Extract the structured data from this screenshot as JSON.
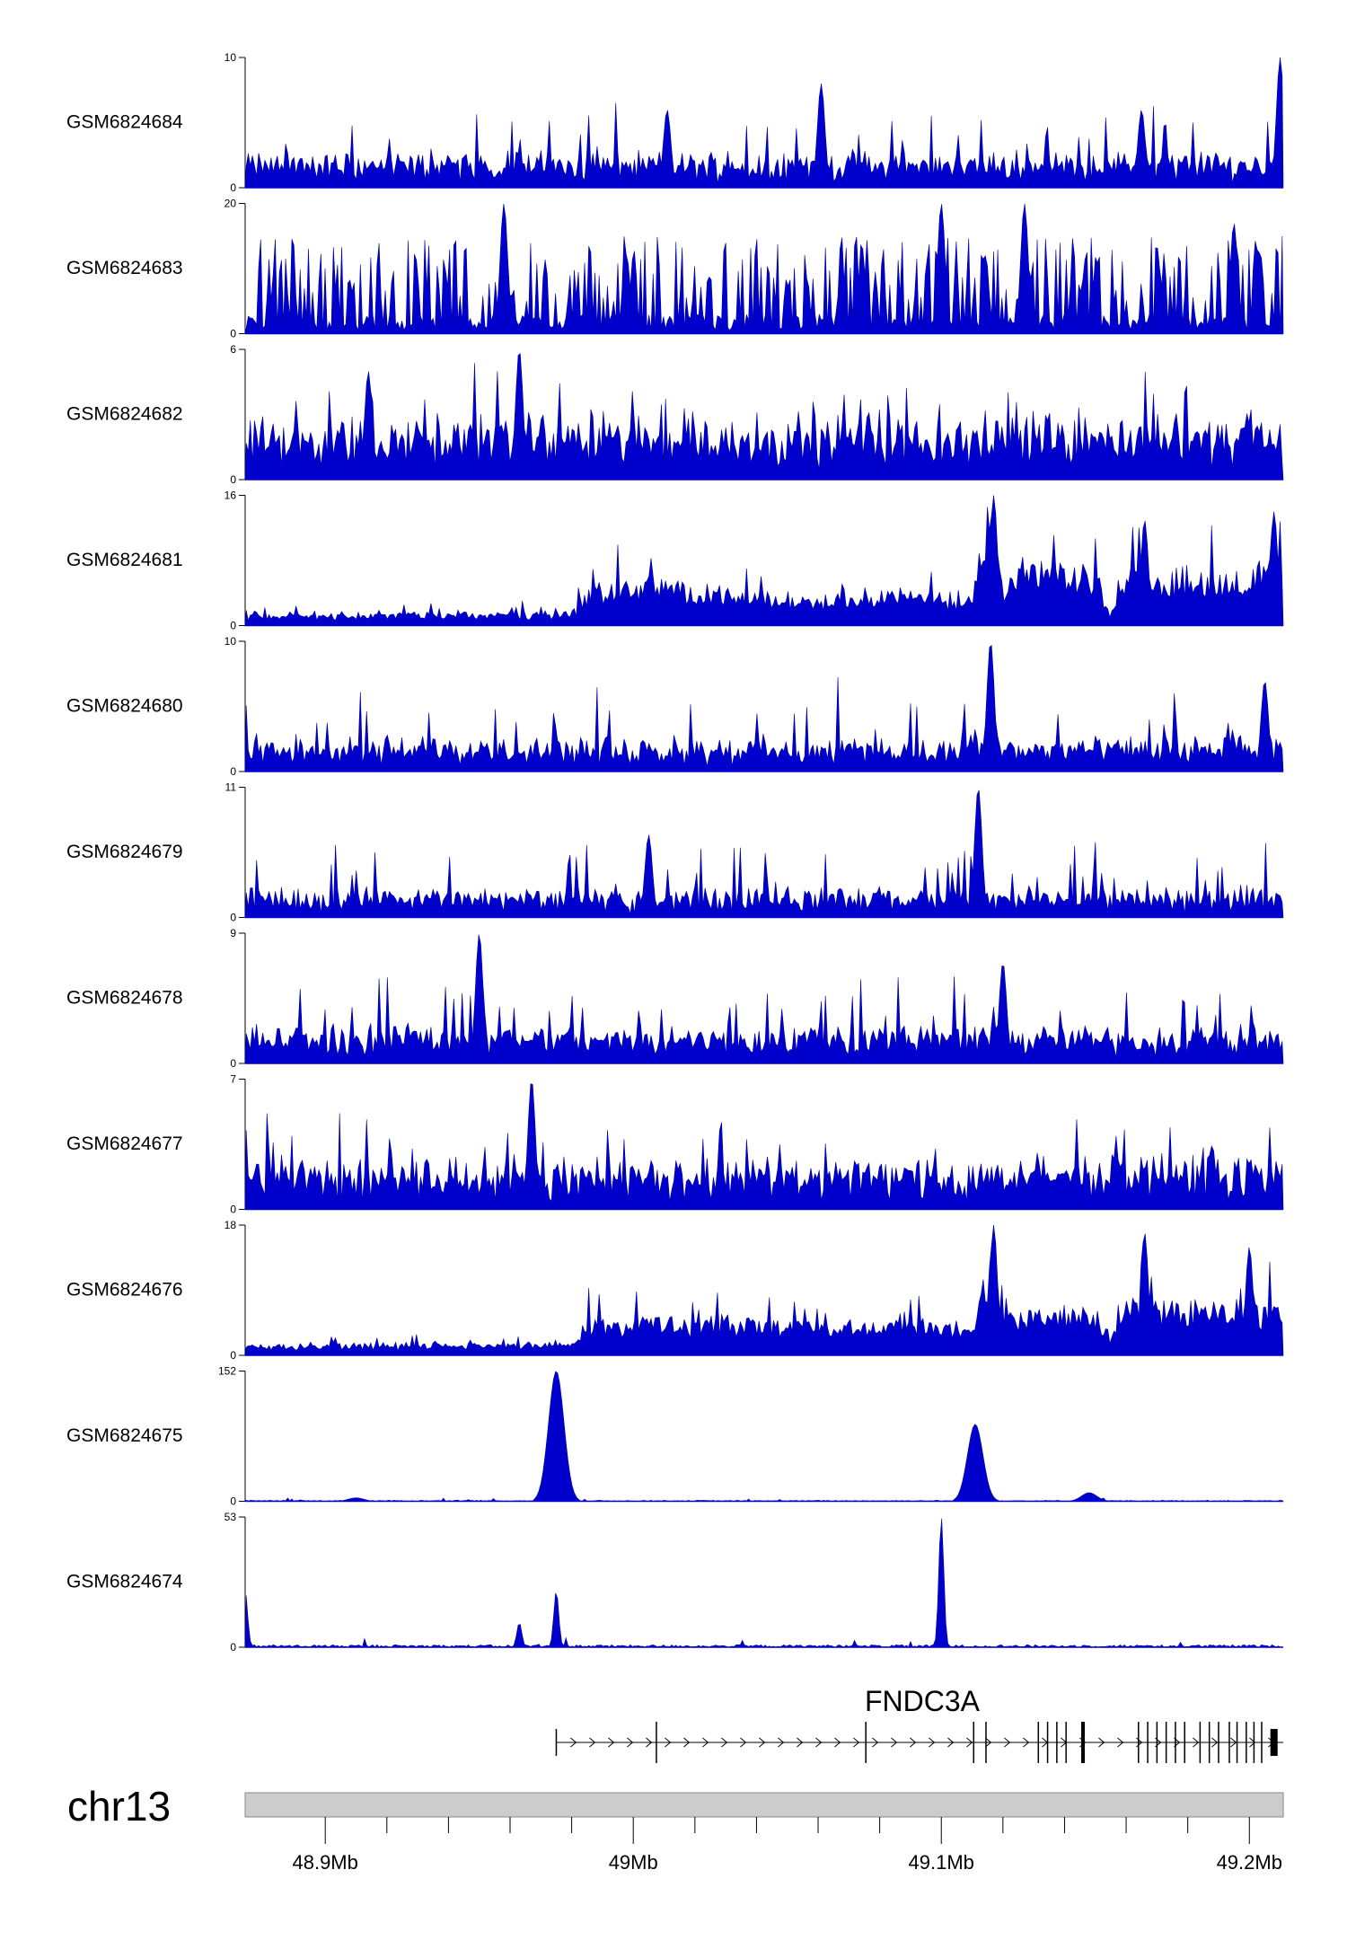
{
  "chart_data": {
    "type": "area",
    "colors": {
      "signal": "#0000cc",
      "axis": "#000000",
      "ideogram": "#cccccc",
      "gene": "#000000"
    },
    "x_range_mb": [
      48.874,
      49.211
    ],
    "tracks": [
      {
        "name": "GSM6824684",
        "ymin": "0",
        "ymax": "10",
        "ymax_value": 10,
        "profile": "noisy",
        "baseline": 1.6,
        "noise": 1.6,
        "peaks": [
          [
            49.011,
            6
          ],
          [
            49.061,
            8
          ],
          [
            49.165,
            6
          ],
          [
            49.21,
            10
          ]
        ]
      },
      {
        "name": "GSM6824683",
        "ymin": "0",
        "ymax": "20",
        "ymax_value": 20,
        "profile": "sparse",
        "baseline": 5,
        "noise": 4,
        "peaks": [
          [
            48.958,
            20
          ],
          [
            49.1,
            20
          ],
          [
            49.127,
            20
          ],
          [
            49.195,
            17
          ]
        ]
      },
      {
        "name": "GSM6824682",
        "ymin": "0",
        "ymax": "6",
        "ymax_value": 6,
        "profile": "noisy",
        "baseline": 1.8,
        "noise": 1.6,
        "peaks": [
          [
            48.914,
            5
          ],
          [
            48.963,
            6
          ]
        ]
      },
      {
        "name": "GSM6824681",
        "ymin": "0",
        "ymax": "16",
        "ymax_value": 16,
        "profile": "ramp",
        "noise": 1.5,
        "levels": [
          [
            48.874,
            1
          ],
          [
            48.98,
            1.2
          ],
          [
            48.985,
            4
          ],
          [
            49.0,
            5
          ],
          [
            49.012,
            5
          ],
          [
            49.03,
            3.5
          ],
          [
            49.06,
            3
          ],
          [
            49.08,
            4
          ],
          [
            49.105,
            3
          ],
          [
            49.11,
            3
          ],
          [
            49.115,
            13
          ],
          [
            49.12,
            4
          ],
          [
            49.125,
            7
          ],
          [
            49.15,
            6
          ],
          [
            49.155,
            0.6
          ],
          [
            49.158,
            6
          ],
          [
            49.211,
            6
          ]
        ],
        "peaks": [
          [
            49.117,
            16
          ],
          [
            49.166,
            13
          ],
          [
            49.208,
            14
          ]
        ]
      },
      {
        "name": "GSM6824680",
        "ymin": "0",
        "ymax": "10",
        "ymax_value": 10,
        "profile": "noisy",
        "baseline": 1.6,
        "noise": 1.5,
        "peaks": [
          [
            49.116,
            10
          ],
          [
            49.205,
            7
          ]
        ]
      },
      {
        "name": "GSM6824679",
        "ymin": "0",
        "ymax": "11",
        "ymax_value": 11,
        "profile": "noisy",
        "baseline": 1.5,
        "noise": 1.4,
        "peaks": [
          [
            49.112,
            11
          ],
          [
            49.005,
            7
          ]
        ]
      },
      {
        "name": "GSM6824678",
        "ymin": "0",
        "ymax": "9",
        "ymax_value": 9,
        "profile": "noisy",
        "baseline": 1.6,
        "noise": 1.5,
        "peaks": [
          [
            48.95,
            9
          ],
          [
            49.12,
            7
          ]
        ]
      },
      {
        "name": "GSM6824677",
        "ymin": "0",
        "ymax": "7",
        "ymax_value": 7,
        "profile": "noisy",
        "baseline": 1.7,
        "noise": 1.6,
        "peaks": [
          [
            48.967,
            7
          ]
        ]
      },
      {
        "name": "GSM6824676",
        "ymin": "0",
        "ymax": "18",
        "ymax_value": 18,
        "profile": "ramp",
        "noise": 1.6,
        "levels": [
          [
            48.874,
            1
          ],
          [
            48.98,
            1.2
          ],
          [
            48.985,
            4
          ],
          [
            49.0,
            4.5
          ],
          [
            49.1,
            4
          ],
          [
            49.11,
            4
          ],
          [
            49.115,
            12
          ],
          [
            49.12,
            5
          ],
          [
            49.15,
            6
          ],
          [
            49.155,
            2
          ],
          [
            49.158,
            7
          ],
          [
            49.211,
            6
          ]
        ],
        "peaks": [
          [
            49.117,
            18
          ],
          [
            49.166,
            17
          ],
          [
            49.2,
            15
          ]
        ]
      },
      {
        "name": "GSM6824675",
        "ymin": "0",
        "ymax": "152",
        "ymax_value": 152,
        "profile": "flat",
        "baseline": 1.5,
        "noise": 1.2,
        "peaks": [
          [
            48.975,
            152
          ],
          [
            49.111,
            90
          ],
          [
            49.148,
            10
          ],
          [
            48.91,
            4
          ]
        ],
        "peak_width_mb": 0.0025
      },
      {
        "name": "GSM6824674",
        "ymin": "0",
        "ymax": "53",
        "ymax_value": 53,
        "profile": "flat",
        "baseline": 1.3,
        "noise": 1.0,
        "peaks": [
          [
            48.874,
            23
          ],
          [
            48.963,
            10
          ],
          [
            48.975,
            23
          ],
          [
            49.1,
            53
          ]
        ],
        "peak_width_mb": 0.0008
      }
    ],
    "gene": {
      "name": "FNDC3A",
      "strand": "+",
      "start_mb": 48.975,
      "end_mb": 49.211,
      "exons_mb": [
        48.975,
        49.0075,
        49.0755,
        49.1105,
        49.1145,
        49.1315,
        49.1345,
        49.1375,
        49.1405,
        49.146,
        49.164,
        49.167,
        49.17,
        49.173,
        49.176,
        49.179,
        49.184,
        49.187,
        49.19,
        49.1935,
        49.196,
        49.199,
        49.2015,
        49.204,
        49.208
      ]
    },
    "ideogram": {
      "chromosome": "chr13",
      "ticks_mb": [
        48.9,
        49.0,
        49.1,
        49.2
      ],
      "tick_labels": [
        "48.9Mb",
        "49Mb",
        "49.1Mb",
        "49.2Mb"
      ],
      "minor_ticks_mb": [
        48.92,
        48.94,
        48.96,
        48.98,
        49.02,
        49.04,
        49.06,
        49.08,
        49.12,
        49.14,
        49.16,
        49.18
      ]
    }
  }
}
